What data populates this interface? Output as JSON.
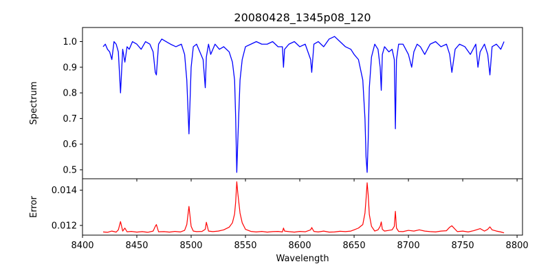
{
  "chart_data": [
    {
      "type": "line",
      "panel": "top",
      "title": "20080428_1345p08_120",
      "ylabel": "Spectrum",
      "xlim": [
        8400,
        8805
      ],
      "ylim": [
        0.465,
        1.055
      ],
      "x_ticks": [
        8400,
        8450,
        8500,
        8550,
        8600,
        8650,
        8700,
        8750,
        8800
      ],
      "y_ticks": [
        0.5,
        0.6,
        0.7,
        0.8,
        0.9,
        1.0
      ],
      "y_tick_labels": [
        "0.5",
        "0.6",
        "0.7",
        "0.8",
        "0.9",
        "1.0"
      ],
      "x_tick_labels_shown": false,
      "color": "#0000ff",
      "series": [
        {
          "x": [
            8419,
            8421,
            8423,
            8425,
            8427,
            8429,
            8431,
            8433,
            8435,
            8437,
            8439,
            8441,
            8443,
            8446,
            8450,
            8454,
            8458,
            8462,
            8465,
            8467,
            8468,
            8470,
            8473,
            8477,
            8481,
            8486,
            8491,
            8494,
            8496,
            8498,
            8500,
            8502,
            8505,
            8508,
            8511,
            8513,
            8514,
            8516,
            8518,
            8522,
            8526,
            8530,
            8535,
            8538,
            8540,
            8541,
            8542,
            8543,
            8545,
            8547,
            8550,
            8555,
            8560,
            8565,
            8570,
            8575,
            8580,
            8584,
            8585,
            8586,
            8590,
            8595,
            8600,
            8605,
            8610,
            8611,
            8613,
            8617,
            8622,
            8627,
            8632,
            8637,
            8642,
            8647,
            8650,
            8654,
            8658,
            8660,
            8661,
            8662,
            8663,
            8664,
            8666,
            8669,
            8672,
            8674,
            8675,
            8676,
            8678,
            8682,
            8685,
            8687,
            8688,
            8689,
            8691,
            8695,
            8700,
            8703,
            8705,
            8708,
            8711,
            8715,
            8720,
            8725,
            8730,
            8735,
            8738,
            8740,
            8743,
            8747,
            8752,
            8757,
            8762,
            8764,
            8766,
            8770,
            8773,
            8775,
            8777,
            8781,
            8785,
            8788
          ],
          "y": [
            0.98,
            0.99,
            0.97,
            0.96,
            0.93,
            1.0,
            0.99,
            0.96,
            0.8,
            0.97,
            0.92,
            0.98,
            0.97,
            1.0,
            0.99,
            0.97,
            1.0,
            0.99,
            0.96,
            0.88,
            0.87,
            0.99,
            1.01,
            1.0,
            0.99,
            0.98,
            0.99,
            0.95,
            0.85,
            0.64,
            0.9,
            0.98,
            0.99,
            0.96,
            0.93,
            0.82,
            0.94,
            0.99,
            0.95,
            0.99,
            0.97,
            0.98,
            0.96,
            0.92,
            0.85,
            0.7,
            0.49,
            0.62,
            0.85,
            0.93,
            0.98,
            0.99,
            1.0,
            0.99,
            0.99,
            1.0,
            0.98,
            0.98,
            0.9,
            0.97,
            0.99,
            1.0,
            0.98,
            0.99,
            0.93,
            0.88,
            0.99,
            1.0,
            0.98,
            1.01,
            1.02,
            1.0,
            0.98,
            0.97,
            0.95,
            0.93,
            0.85,
            0.7,
            0.55,
            0.49,
            0.62,
            0.82,
            0.94,
            0.99,
            0.97,
            0.9,
            0.81,
            0.95,
            0.98,
            0.96,
            0.97,
            0.93,
            0.66,
            0.93,
            0.99,
            0.99,
            0.95,
            0.9,
            0.96,
            0.99,
            0.98,
            0.95,
            0.99,
            1.0,
            0.98,
            0.99,
            0.95,
            0.88,
            0.97,
            0.99,
            0.98,
            0.95,
            0.99,
            0.9,
            0.96,
            0.99,
            0.95,
            0.87,
            0.98,
            0.99,
            0.97,
            1.0
          ]
        }
      ]
    },
    {
      "type": "line",
      "panel": "bottom",
      "title": "",
      "xlabel": "Wavelength",
      "ylabel": "Error",
      "xlim": [
        8400,
        8805
      ],
      "ylim": [
        0.01145,
        0.01465
      ],
      "x_ticks": [
        8400,
        8450,
        8500,
        8550,
        8600,
        8650,
        8700,
        8750,
        8800
      ],
      "x_tick_labels": [
        "8400",
        "8450",
        "8500",
        "8550",
        "8600",
        "8650",
        "8700",
        "8750",
        "8800"
      ],
      "y_ticks": [
        0.012,
        0.014
      ],
      "y_tick_labels": [
        "0.012",
        "0.014"
      ],
      "color": "#ff0000",
      "series": [
        {
          "x": [
            8419,
            8423,
            8427,
            8431,
            8433,
            8435,
            8437,
            8439,
            8441,
            8445,
            8450,
            8455,
            8460,
            8465,
            8467,
            8468,
            8470,
            8475,
            8480,
            8485,
            8490,
            8494,
            8496,
            8498,
            8500,
            8502,
            8505,
            8510,
            8513,
            8514,
            8516,
            8520,
            8525,
            8530,
            8535,
            8538,
            8540,
            8541,
            8542,
            8543,
            8545,
            8547,
            8550,
            8555,
            8560,
            8565,
            8570,
            8575,
            8580,
            8584,
            8585,
            8586,
            8590,
            8595,
            8600,
            8605,
            8610,
            8611,
            8613,
            8617,
            8622,
            8627,
            8632,
            8637,
            8642,
            8647,
            8650,
            8654,
            8658,
            8660,
            8661,
            8662,
            8663,
            8664,
            8666,
            8669,
            8672,
            8674,
            8675,
            8676,
            8678,
            8682,
            8685,
            8687,
            8688,
            8689,
            8691,
            8695,
            8700,
            8705,
            8710,
            8715,
            8720,
            8725,
            8730,
            8735,
            8738,
            8740,
            8745,
            8750,
            8755,
            8760,
            8764,
            8766,
            8770,
            8773,
            8775,
            8777,
            8781,
            8785,
            8788
          ],
          "y": [
            0.01163,
            0.01161,
            0.01168,
            0.01162,
            0.01175,
            0.01222,
            0.01168,
            0.01185,
            0.01164,
            0.01166,
            0.01162,
            0.01165,
            0.01161,
            0.01168,
            0.01195,
            0.01205,
            0.01164,
            0.01165,
            0.01162,
            0.01166,
            0.01163,
            0.01172,
            0.01205,
            0.01308,
            0.01195,
            0.01168,
            0.01165,
            0.01166,
            0.01178,
            0.01218,
            0.01168,
            0.01165,
            0.01168,
            0.01175,
            0.0119,
            0.01215,
            0.01265,
            0.01335,
            0.01448,
            0.0138,
            0.0127,
            0.01215,
            0.01178,
            0.01166,
            0.01163,
            0.01166,
            0.01162,
            0.01165,
            0.01166,
            0.01163,
            0.01185,
            0.01168,
            0.01165,
            0.01162,
            0.01166,
            0.01164,
            0.01175,
            0.01188,
            0.01166,
            0.01163,
            0.01168,
            0.01162,
            0.01163,
            0.01167,
            0.01165,
            0.01168,
            0.01175,
            0.01185,
            0.01205,
            0.0127,
            0.0135,
            0.01442,
            0.0137,
            0.01262,
            0.01195,
            0.01168,
            0.01175,
            0.01195,
            0.0122,
            0.01178,
            0.01168,
            0.01172,
            0.01175,
            0.01195,
            0.0128,
            0.01185,
            0.01166,
            0.01165,
            0.01172,
            0.01168,
            0.01175,
            0.01168,
            0.01165,
            0.01163,
            0.01168,
            0.0117,
            0.0119,
            0.01198,
            0.01165,
            0.01168,
            0.01163,
            0.0117,
            0.01178,
            0.01182,
            0.01168,
            0.01178,
            0.01192,
            0.01175,
            0.01168,
            0.01163,
            0.01158
          ]
        }
      ]
    }
  ]
}
